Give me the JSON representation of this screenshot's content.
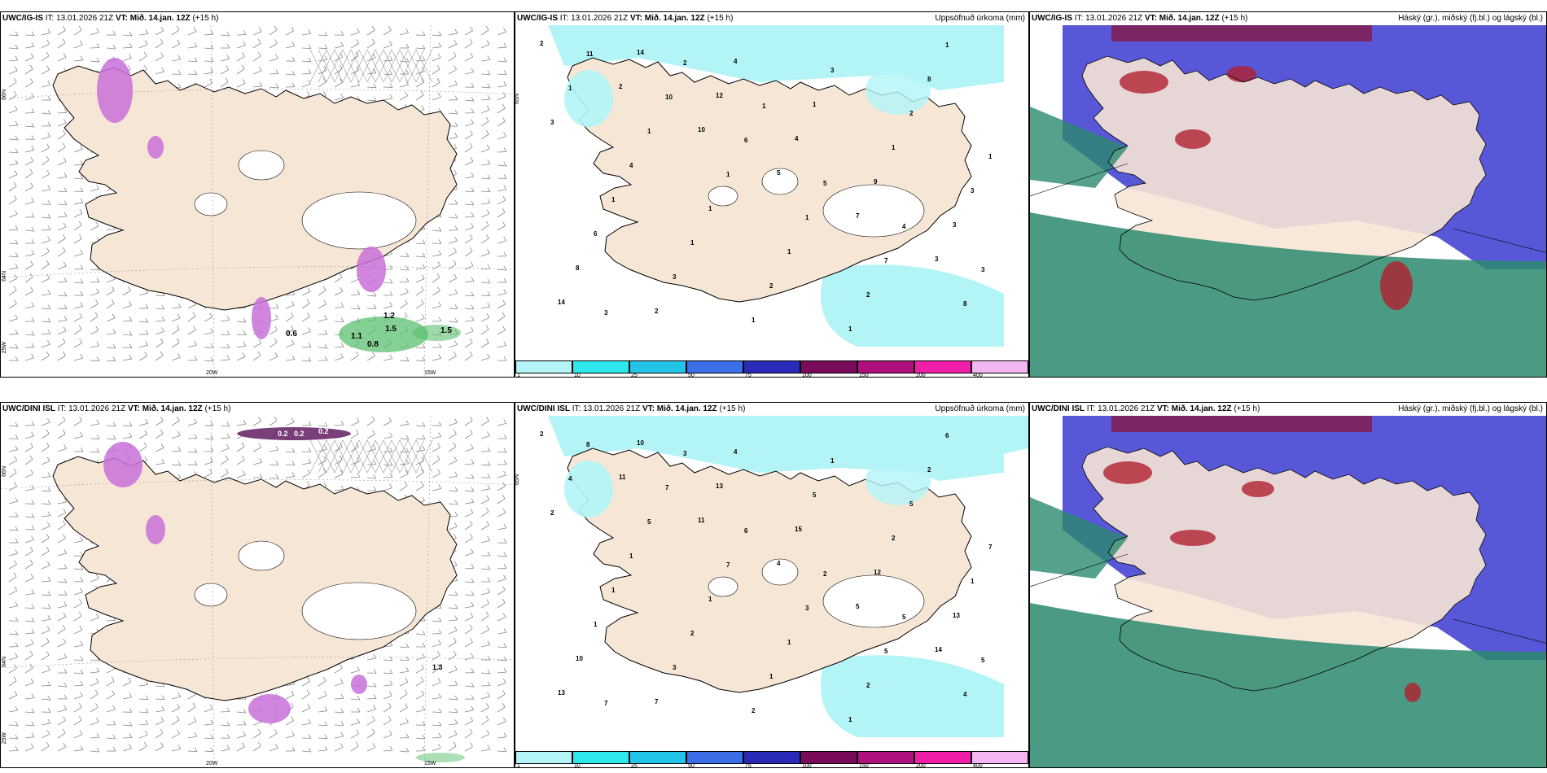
{
  "panels": [
    {
      "model": "UWC/IG-IS",
      "it": "IT: 13.01.2026 21Z",
      "vt_label": "VT:",
      "vt": "Mið. 14.jan. 12Z",
      "lead": "(+15 h)",
      "right": ""
    },
    {
      "model": "UWC/IG-IS",
      "it": "IT: 13.01.2026 21Z",
      "vt_label": "VT:",
      "vt": "Mið. 14.jan. 12Z",
      "lead": "(+15 h)",
      "right": "Uppsöfnuð úrkoma (mm)"
    },
    {
      "model": "UWC/IG-IS",
      "it": "IT: 13.01.2026 21Z",
      "vt_label": "VT:",
      "vt": "Mið. 14.jan. 12Z",
      "lead": "(+15 h)",
      "right": "Háský (gr.), miðský (fj.bl.) og lágský (bl.)"
    },
    {
      "model": "UWC/DINI ISL",
      "it": "IT: 13.01.2026 21Z",
      "vt_label": "VT:",
      "vt": "Mið. 14.jan. 12Z",
      "lead": "(+15 h)",
      "right": ""
    },
    {
      "model": "UWC/DINI ISL",
      "it": "IT: 13.01.2026 21Z",
      "vt_label": "VT:",
      "vt": "Mið. 14.jan. 12Z",
      "lead": "(+15 h)",
      "right": "Uppsöfnuð úrkoma (mm)"
    },
    {
      "model": "UWC/DINI ISL",
      "it": "IT: 13.01.2026 21Z",
      "vt_label": "VT:",
      "vt": "Mið. 14.jan. 12Z",
      "lead": "(+15 h)",
      "right": "Háský (gr.), miðský (fj.bl.) og lágský (bl.)"
    }
  ],
  "axis_labels": {
    "lat66": "66N",
    "lat64": "64N",
    "lat25": "25W",
    "lon20": "20W",
    "lon15": "15W",
    "lat65": "65N"
  },
  "colorbar": {
    "ticks": [
      "1",
      "10",
      "25",
      "50",
      "75",
      "100",
      "150",
      "200",
      "400"
    ],
    "colors": [
      "#b3f5f7",
      "#2ee8ee",
      "#22c4e8",
      "#3c6ee8",
      "#2a2ab8",
      "#7a0a5a",
      "#b0107e",
      "#f01ea8",
      "#f3b6f3"
    ]
  },
  "precip_labels_top": [
    "2",
    "2",
    "10",
    "5",
    "7",
    "3",
    "14",
    "14",
    "12",
    "4",
    "9",
    "3",
    "8",
    "2",
    "4",
    "1",
    "1",
    "3",
    "6",
    "3",
    "1",
    "3",
    "2",
    "1",
    "1",
    "1",
    "2",
    "1",
    "8",
    "3",
    "4",
    "1",
    "1",
    "2",
    "1",
    "1",
    "1",
    "1",
    "1",
    "7",
    "8",
    "11",
    "10",
    "6",
    "5",
    "4",
    "3",
    "3",
    "2",
    "1"
  ],
  "precip_labels_bottom": [
    "2",
    "11",
    "11",
    "4",
    "5",
    "14",
    "13",
    "10",
    "13",
    "15",
    "12",
    "13",
    "10",
    "7",
    "4",
    "5",
    "2",
    "1",
    "1",
    "3",
    "2",
    "1",
    "5",
    "7",
    "1",
    "2",
    "1",
    "1",
    "2",
    "2",
    "1",
    "1",
    "1",
    "2",
    "6",
    "4",
    "5",
    "7",
    "3",
    "5",
    "4",
    "8",
    "7",
    "6",
    "2",
    "5",
    "5",
    "7",
    "3"
  ],
  "wind_labels_top": [
    "0.6",
    "1.1",
    "0.8",
    "1.2",
    "1.5",
    "1.5"
  ],
  "wind_labels_bottom": [
    "0.2",
    "0.2",
    "0.2",
    "1.3"
  ],
  "colors": {
    "land": "#f6e6d6",
    "sea": "#ffffff",
    "precip": "#b3f5f7",
    "purple": "#c870d8",
    "green": "#5cc070",
    "cloud_high": "#2b8a6e",
    "cloud_mid": "#3a3ad0",
    "cloud_low": "#b02030"
  }
}
